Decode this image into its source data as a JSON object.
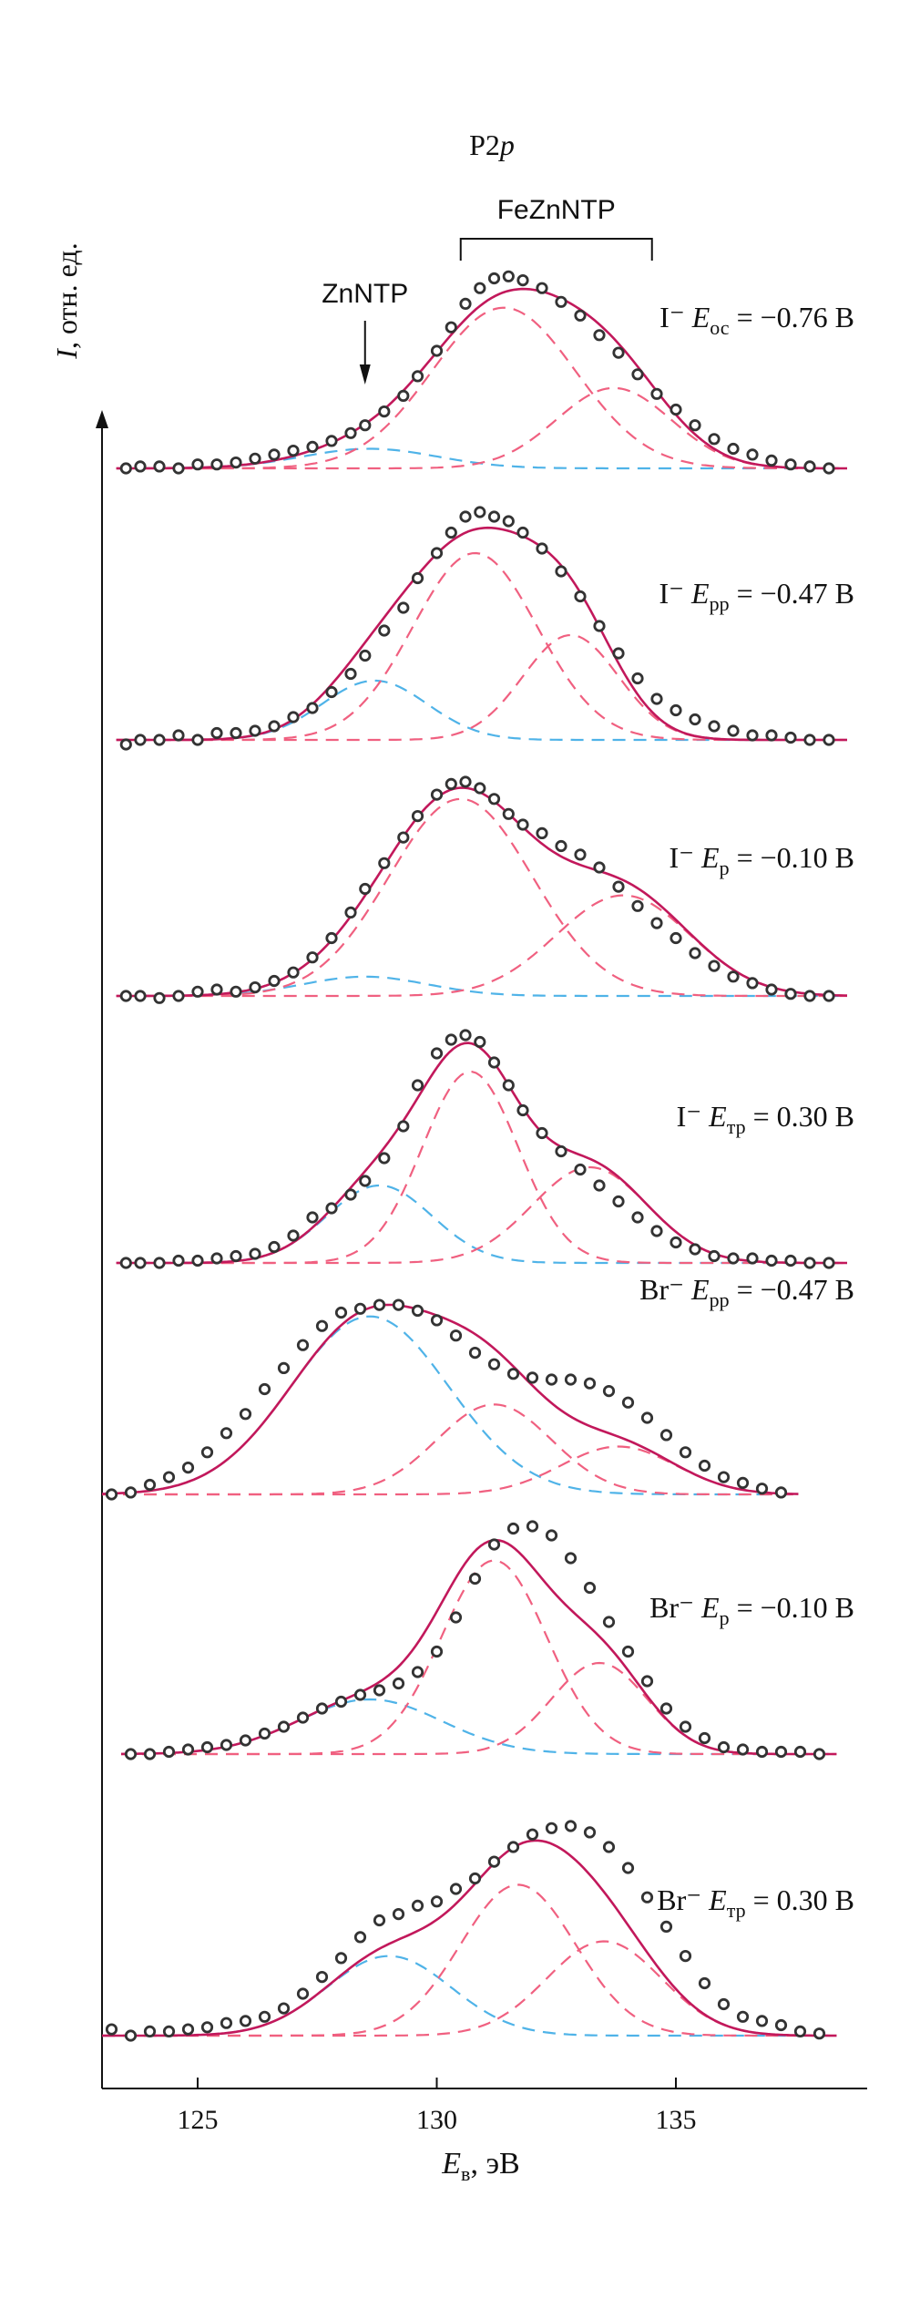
{
  "chart_data": {
    "type": "line",
    "title": "P2p",
    "xlabel": "Eв, эВ",
    "ylabel": "I, отн. ед.",
    "xlim": [
      123,
      139
    ],
    "xticks": [
      125,
      130,
      135
    ],
    "grid": false,
    "colors": {
      "fit": "#c2185b",
      "data_marker": "#333333",
      "fezn_component": "#f06080",
      "zn_component": "#4fb3e8",
      "axis": "#111111"
    },
    "annotations": {
      "bracket_label": "FeZnNTP",
      "bracket_x": [
        130.5,
        134.5
      ],
      "arrow_label": "ZnNTP",
      "arrow_x": 128.5
    },
    "panels": [
      {
        "ion": "I⁻",
        "potential": "E",
        "subscript": "ос",
        "value": "= −0.76 В",
        "data_x": [
          123.5,
          123.8,
          124.2,
          124.6,
          125.0,
          125.4,
          125.8,
          126.2,
          126.6,
          127.0,
          127.4,
          127.8,
          128.2,
          128.5,
          128.9,
          129.3,
          129.6,
          130.0,
          130.3,
          130.6,
          130.9,
          131.2,
          131.5,
          131.8,
          132.2,
          132.6,
          133.0,
          133.4,
          133.8,
          134.2,
          134.6,
          135.0,
          135.4,
          135.8,
          136.2,
          136.6,
          137.0,
          137.4,
          137.8,
          138.2
        ],
        "data_y": [
          0.0,
          0.01,
          0.01,
          0.0,
          0.02,
          0.02,
          0.03,
          0.05,
          0.07,
          0.09,
          0.11,
          0.14,
          0.18,
          0.22,
          0.29,
          0.37,
          0.47,
          0.6,
          0.72,
          0.84,
          0.92,
          0.97,
          0.98,
          0.96,
          0.92,
          0.85,
          0.78,
          0.68,
          0.59,
          0.48,
          0.38,
          0.3,
          0.22,
          0.15,
          0.1,
          0.07,
          0.04,
          0.02,
          0.01,
          0.0
        ],
        "components": [
          {
            "kind": "ZnNTP",
            "center": 128.6,
            "amp": 0.1,
            "sigma": 1.4
          },
          {
            "kind": "FeZnNTP",
            "center": 131.4,
            "amp": 0.82,
            "sigma": 1.5
          },
          {
            "kind": "FeZnNTP",
            "center": 133.7,
            "amp": 0.41,
            "sigma": 1.2
          }
        ]
      },
      {
        "ion": "I⁻",
        "potential": "E",
        "subscript": "рр",
        "value": "= −0.47 В",
        "data_x": [
          123.5,
          123.8,
          124.2,
          124.6,
          125.0,
          125.4,
          125.8,
          126.2,
          126.6,
          127.0,
          127.4,
          127.8,
          128.2,
          128.5,
          128.9,
          129.3,
          129.6,
          130.0,
          130.3,
          130.6,
          130.9,
          131.2,
          131.5,
          131.8,
          132.2,
          132.6,
          133.0,
          133.4,
          133.8,
          134.2,
          134.6,
          135.0,
          135.4,
          135.8,
          136.2,
          136.6,
          137.0,
          137.4,
          137.8,
          138.2
        ],
        "data_y": [
          -0.02,
          0.0,
          0.0,
          0.02,
          0.0,
          0.03,
          0.03,
          0.04,
          0.06,
          0.1,
          0.14,
          0.21,
          0.29,
          0.37,
          0.48,
          0.58,
          0.71,
          0.82,
          0.91,
          0.98,
          1.0,
          0.98,
          0.96,
          0.91,
          0.84,
          0.74,
          0.63,
          0.5,
          0.38,
          0.27,
          0.18,
          0.13,
          0.09,
          0.06,
          0.04,
          0.02,
          0.02,
          0.01,
          0.0,
          0.0
        ],
        "components": [
          {
            "kind": "ZnNTP",
            "center": 128.7,
            "amp": 0.26,
            "sigma": 1.1
          },
          {
            "kind": "FeZnNTP",
            "center": 130.8,
            "amp": 0.82,
            "sigma": 1.3
          },
          {
            "kind": "FeZnNTP",
            "center": 132.8,
            "amp": 0.46,
            "sigma": 1.0
          }
        ]
      },
      {
        "ion": "I⁻",
        "potential": "E",
        "subscript": "р",
        "value": "= −0.10 В",
        "data_x": [
          123.5,
          123.8,
          124.2,
          124.6,
          125.0,
          125.4,
          125.8,
          126.2,
          126.6,
          127.0,
          127.4,
          127.8,
          128.2,
          128.5,
          128.9,
          129.3,
          129.6,
          130.0,
          130.3,
          130.6,
          130.9,
          131.2,
          131.5,
          131.8,
          132.2,
          132.6,
          133.0,
          133.4,
          133.8,
          134.2,
          134.6,
          135.0,
          135.4,
          135.8,
          136.2,
          136.6,
          137.0,
          137.4,
          137.8,
          138.2
        ],
        "data_y": [
          0.0,
          0.0,
          -0.01,
          0.0,
          0.02,
          0.03,
          0.02,
          0.04,
          0.07,
          0.11,
          0.18,
          0.27,
          0.39,
          0.5,
          0.62,
          0.74,
          0.84,
          0.94,
          0.99,
          1.0,
          0.97,
          0.92,
          0.85,
          0.8,
          0.76,
          0.7,
          0.66,
          0.6,
          0.51,
          0.42,
          0.34,
          0.27,
          0.2,
          0.14,
          0.09,
          0.06,
          0.03,
          0.01,
          0.0,
          0.0
        ],
        "components": [
          {
            "kind": "ZnNTP",
            "center": 128.5,
            "amp": 0.09,
            "sigma": 1.3
          },
          {
            "kind": "FeZnNTP",
            "center": 130.5,
            "amp": 0.92,
            "sigma": 1.5
          },
          {
            "kind": "FeZnNTP",
            "center": 133.9,
            "amp": 0.47,
            "sigma": 1.4
          }
        ]
      },
      {
        "ion": "I⁻",
        "potential": "E",
        "subscript": "тр",
        "value": "= 0.30 В",
        "data_x": [
          123.5,
          123.8,
          124.2,
          124.6,
          125.0,
          125.4,
          125.8,
          126.2,
          126.6,
          127.0,
          127.4,
          127.8,
          128.2,
          128.5,
          128.9,
          129.3,
          129.6,
          130.0,
          130.3,
          130.6,
          130.9,
          131.2,
          131.5,
          131.8,
          132.2,
          132.6,
          133.0,
          133.4,
          133.8,
          134.2,
          134.6,
          135.0,
          135.4,
          135.8,
          136.2,
          136.6,
          137.0,
          137.4,
          137.8,
          138.2
        ],
        "data_y": [
          0.0,
          0.0,
          0.0,
          0.01,
          0.01,
          0.02,
          0.03,
          0.04,
          0.07,
          0.12,
          0.2,
          0.24,
          0.3,
          0.36,
          0.46,
          0.6,
          0.78,
          0.92,
          0.98,
          1.0,
          0.97,
          0.88,
          0.78,
          0.67,
          0.57,
          0.49,
          0.41,
          0.34,
          0.27,
          0.2,
          0.14,
          0.09,
          0.06,
          0.03,
          0.02,
          0.02,
          0.01,
          0.01,
          0.0,
          0.0
        ],
        "components": [
          {
            "kind": "ZnNTP",
            "center": 128.8,
            "amp": 0.34,
            "sigma": 1.1
          },
          {
            "kind": "FeZnNTP",
            "center": 130.7,
            "amp": 0.84,
            "sigma": 1.0
          },
          {
            "kind": "FeZnNTP",
            "center": 133.2,
            "amp": 0.42,
            "sigma": 1.2
          }
        ]
      },
      {
        "ion": "Br⁻",
        "potential": "E",
        "subscript": "рр",
        "value": "= −0.47 В",
        "data_x": [
          123.2,
          123.6,
          124.0,
          124.4,
          124.8,
          125.2,
          125.6,
          126.0,
          126.4,
          126.8,
          127.2,
          127.6,
          128.0,
          128.4,
          128.8,
          129.2,
          129.6,
          130.0,
          130.4,
          130.8,
          131.2,
          131.6,
          132.0,
          132.4,
          132.8,
          133.2,
          133.6,
          134.0,
          134.4,
          134.8,
          135.2,
          135.6,
          136.0,
          136.4,
          136.8,
          137.2
        ],
        "data_y": [
          0.0,
          0.01,
          0.05,
          0.09,
          0.14,
          0.22,
          0.32,
          0.42,
          0.55,
          0.66,
          0.78,
          0.88,
          0.95,
          0.97,
          0.99,
          0.99,
          0.96,
          0.91,
          0.83,
          0.74,
          0.68,
          0.63,
          0.61,
          0.6,
          0.6,
          0.58,
          0.54,
          0.48,
          0.4,
          0.31,
          0.22,
          0.15,
          0.09,
          0.06,
          0.03,
          0.01
        ],
        "components": [
          {
            "kind": "ZnNTP",
            "center": 128.6,
            "amp": 0.93,
            "sigma": 1.65
          },
          {
            "kind": "FeZnNTP",
            "center": 131.2,
            "amp": 0.47,
            "sigma": 1.2
          },
          {
            "kind": "FeZnNTP",
            "center": 133.8,
            "amp": 0.25,
            "sigma": 1.2
          }
        ]
      },
      {
        "ion": "Br⁻",
        "potential": "E",
        "subscript": "р",
        "value": "= −0.10 В",
        "data_x": [
          123.6,
          124.0,
          124.4,
          124.8,
          125.2,
          125.6,
          126.0,
          126.4,
          126.8,
          127.2,
          127.6,
          128.0,
          128.4,
          128.8,
          129.2,
          129.6,
          130.0,
          130.4,
          130.8,
          131.2,
          131.6,
          132.0,
          132.4,
          132.8,
          133.2,
          133.6,
          134.0,
          134.4,
          134.8,
          135.2,
          135.6,
          136.0,
          136.4,
          136.8,
          137.2,
          137.6,
          138.0
        ],
        "data_y": [
          0.0,
          0.0,
          0.01,
          0.02,
          0.03,
          0.04,
          0.06,
          0.09,
          0.12,
          0.16,
          0.2,
          0.23,
          0.26,
          0.28,
          0.31,
          0.36,
          0.45,
          0.6,
          0.77,
          0.92,
          0.99,
          1.0,
          0.96,
          0.86,
          0.73,
          0.58,
          0.45,
          0.32,
          0.2,
          0.12,
          0.07,
          0.03,
          0.02,
          0.01,
          0.01,
          0.01,
          0.0
        ],
        "components": [
          {
            "kind": "ZnNTP",
            "center": 128.6,
            "amp": 0.24,
            "sigma": 1.5
          },
          {
            "kind": "FeZnNTP",
            "center": 131.2,
            "amp": 0.85,
            "sigma": 1.1
          },
          {
            "kind": "FeZnNTP",
            "center": 133.4,
            "amp": 0.4,
            "sigma": 1.0
          }
        ]
      },
      {
        "ion": "Br⁻",
        "potential": "E",
        "subscript": "тр",
        "value": "= 0.30 В",
        "data_x": [
          123.2,
          123.6,
          124.0,
          124.4,
          124.8,
          125.2,
          125.6,
          126.0,
          126.4,
          126.8,
          127.2,
          127.6,
          128.0,
          128.4,
          128.8,
          129.2,
          129.6,
          130.0,
          130.4,
          130.8,
          131.2,
          131.6,
          132.0,
          132.4,
          132.8,
          133.2,
          133.6,
          134.0,
          134.4,
          134.8,
          135.2,
          135.6,
          136.0,
          136.4,
          136.8,
          137.2,
          137.6,
          138.0
        ],
        "data_y": [
          0.03,
          0.0,
          0.02,
          0.02,
          0.03,
          0.04,
          0.06,
          0.07,
          0.09,
          0.13,
          0.2,
          0.28,
          0.37,
          0.47,
          0.55,
          0.58,
          0.62,
          0.64,
          0.7,
          0.75,
          0.83,
          0.9,
          0.96,
          0.99,
          1.0,
          0.97,
          0.9,
          0.8,
          0.66,
          0.52,
          0.38,
          0.25,
          0.15,
          0.09,
          0.07,
          0.05,
          0.02,
          0.01
        ],
        "components": [
          {
            "kind": "ZnNTP",
            "center": 129.0,
            "amp": 0.38,
            "sigma": 1.3
          },
          {
            "kind": "FeZnNTP",
            "center": 131.7,
            "amp": 0.72,
            "sigma": 1.2
          },
          {
            "kind": "FeZnNTP",
            "center": 133.5,
            "amp": 0.45,
            "sigma": 1.2
          }
        ]
      }
    ]
  }
}
